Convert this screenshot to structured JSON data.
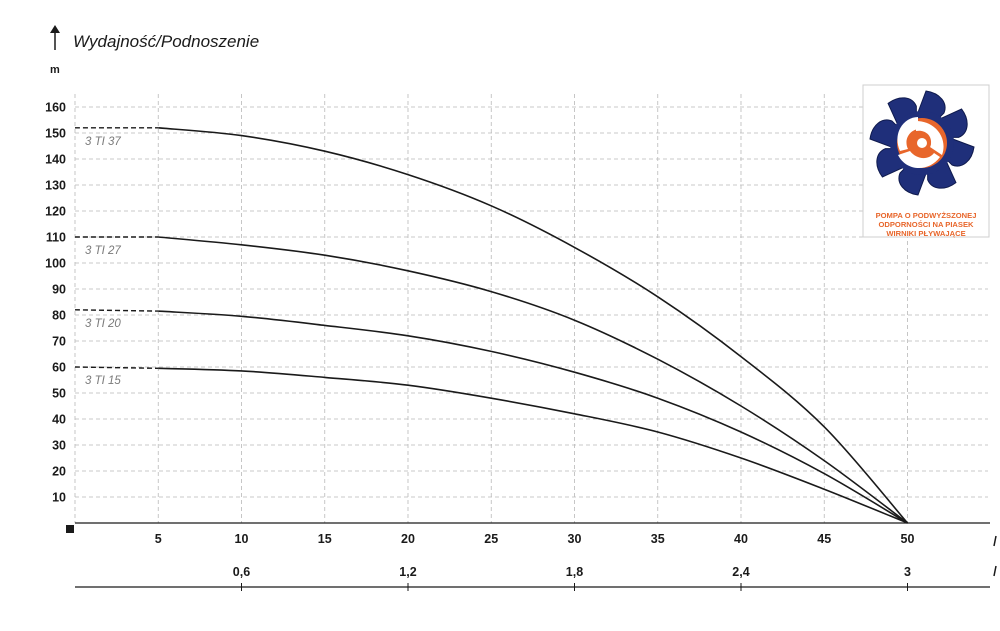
{
  "chart_data": {
    "type": "line",
    "title": "Wydajność/Podnoszenie",
    "y_unit": "m",
    "ylim": [
      0,
      165
    ],
    "y_ticks": [
      10,
      20,
      30,
      40,
      50,
      60,
      70,
      80,
      90,
      100,
      110,
      120,
      130,
      140,
      150,
      160
    ],
    "xlim": [
      0,
      55
    ],
    "x_ticks": [
      5,
      10,
      15,
      20,
      25,
      30,
      35,
      40,
      45,
      50
    ],
    "x_ticks_secondary": [
      {
        "label": "0,6",
        "at": 10
      },
      {
        "label": "1,2",
        "at": 20
      },
      {
        "label": "1,8",
        "at": 30
      },
      {
        "label": "2,4",
        "at": 40
      },
      {
        "label": "3",
        "at": 50
      }
    ],
    "grid": true,
    "series": [
      {
        "name": "3 TI 37",
        "x": [
          0,
          5,
          10,
          15,
          20,
          25,
          30,
          35,
          40,
          45,
          50
        ],
        "values": [
          152,
          152,
          149,
          143,
          134,
          122,
          106,
          87,
          64,
          37,
          0
        ]
      },
      {
        "name": "3 TI 27",
        "x": [
          0,
          5,
          10,
          15,
          20,
          25,
          30,
          35,
          40,
          45,
          50
        ],
        "values": [
          110,
          110,
          107,
          103,
          97,
          89,
          78,
          63,
          45,
          24,
          0
        ]
      },
      {
        "name": "3 TI 20",
        "x": [
          0,
          5,
          10,
          15,
          20,
          25,
          30,
          35,
          40,
          45,
          50
        ],
        "values": [
          82,
          81.5,
          79.5,
          76,
          72,
          66,
          58,
          48,
          35,
          19,
          0
        ]
      },
      {
        "name": "3 TI 15",
        "x": [
          0,
          5,
          10,
          15,
          20,
          25,
          30,
          35,
          40,
          45,
          50
        ],
        "values": [
          60,
          59.5,
          58.5,
          56,
          53,
          48,
          42,
          35,
          25,
          13,
          0
        ]
      }
    ]
  },
  "badge": {
    "line1": "POMPA O PODWYŻSZONEJ",
    "line2": "ODPORNOŚCI NA PIASEK",
    "line3": "WIRNIKI PŁYWAJĄCE",
    "accent_color": "#e8662b",
    "impeller_color": "#1f2f7a"
  }
}
